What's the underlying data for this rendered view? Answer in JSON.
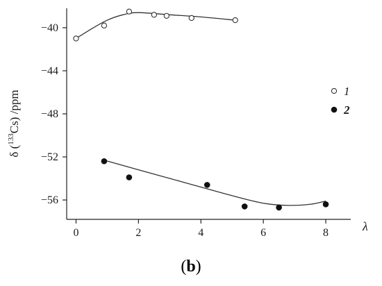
{
  "chart_data": {
    "type": "scatter",
    "xlabel": "λ",
    "ylabel": {
      "prefix": "δ (",
      "superscript": "133",
      "element": "Cs",
      "suffix": ") /ppm"
    },
    "xlim": [
      -0.3,
      8.8
    ],
    "ylim": [
      -57.8,
      -38.2
    ],
    "x_ticks": [
      0,
      2,
      4,
      6,
      8
    ],
    "y_ticks": [
      -40,
      -44,
      -48,
      -52,
      -56
    ],
    "series": [
      {
        "name": "1",
        "marker": "open-circle",
        "color": "#333333",
        "points": [
          {
            "x": 0.0,
            "y": -41.0
          },
          {
            "x": 0.9,
            "y": -39.8
          },
          {
            "x": 1.7,
            "y": -38.5
          },
          {
            "x": 2.5,
            "y": -38.8
          },
          {
            "x": 2.9,
            "y": -38.9
          },
          {
            "x": 3.7,
            "y": -39.1
          },
          {
            "x": 5.1,
            "y": -39.3
          }
        ],
        "fit": [
          {
            "x": 0.0,
            "y": -41.0
          },
          {
            "x": 0.5,
            "y": -40.1
          },
          {
            "x": 1.0,
            "y": -39.3
          },
          {
            "x": 1.5,
            "y": -38.8
          },
          {
            "x": 2.0,
            "y": -38.6
          },
          {
            "x": 3.0,
            "y": -38.8
          },
          {
            "x": 4.0,
            "y": -39.0
          },
          {
            "x": 5.1,
            "y": -39.3
          }
        ]
      },
      {
        "name": "2",
        "marker": "filled-circle",
        "color": "#111111",
        "points": [
          {
            "x": 0.9,
            "y": -52.4
          },
          {
            "x": 1.7,
            "y": -53.9
          },
          {
            "x": 4.2,
            "y": -54.6
          },
          {
            "x": 5.4,
            "y": -56.6
          },
          {
            "x": 6.5,
            "y": -56.7
          },
          {
            "x": 8.0,
            "y": -56.4
          }
        ],
        "fit": [
          {
            "x": 0.9,
            "y": -52.3
          },
          {
            "x": 2.0,
            "y": -53.2
          },
          {
            "x": 3.0,
            "y": -54.0
          },
          {
            "x": 4.0,
            "y": -54.8
          },
          {
            "x": 5.0,
            "y": -55.6
          },
          {
            "x": 6.0,
            "y": -56.3
          },
          {
            "x": 6.8,
            "y": -56.5
          },
          {
            "x": 7.5,
            "y": -56.4
          },
          {
            "x": 8.0,
            "y": -56.1
          }
        ]
      }
    ],
    "legend": {
      "position": "right",
      "entries": [
        "1",
        "2"
      ]
    },
    "grid": false
  },
  "panel_label": {
    "open": "(",
    "letter": "b",
    "close": ")"
  }
}
